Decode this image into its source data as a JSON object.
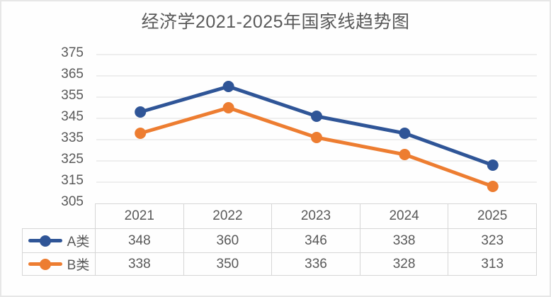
{
  "title": "经济学2021-2025年国家线趋势图",
  "colors": {
    "series_a": "#2F5597",
    "series_b": "#ED7D31",
    "grid": "#E8E8E8",
    "text": "#595959",
    "table_border": "#D6D6D6"
  },
  "chart_data": {
    "type": "line",
    "title": "经济学2021-2025年国家线趋势图",
    "categories": [
      "2021",
      "2022",
      "2023",
      "2024",
      "2025"
    ],
    "series": [
      {
        "name": "A类",
        "color": "#2F5597",
        "values": [
          348,
          360,
          346,
          338,
          323
        ]
      },
      {
        "name": "B类",
        "color": "#ED7D31",
        "values": [
          338,
          350,
          336,
          328,
          313
        ]
      }
    ],
    "ylim": [
      305,
      375
    ],
    "ytick_step": 10,
    "yticks": [
      "375",
      "365",
      "355",
      "345",
      "335",
      "325",
      "315",
      "305"
    ],
    "grid": "horizontal",
    "legend_position": "table-left-column",
    "data_table_shown": true,
    "marker": "circle"
  }
}
